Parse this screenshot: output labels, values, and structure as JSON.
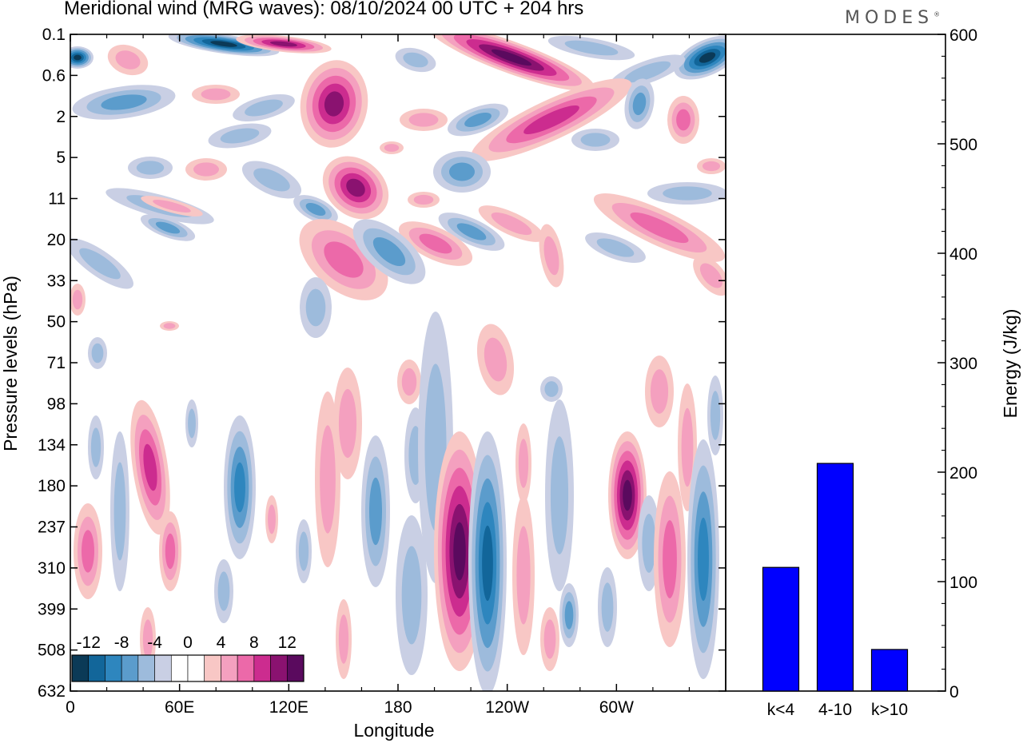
{
  "header": {
    "title": "Meridional wind (MRG waves):  08/10/2024  00 UTC  + 204 hrs",
    "brand": "MODES",
    "brand_mark": "®"
  },
  "chart_data": [
    {
      "type": "heatmap",
      "title": "Meridional wind (MRG waves):  08/10/2024  00 UTC  + 204 hrs",
      "xlabel": "Longitude",
      "ylabel": "Pressure levels (hPa)",
      "x_ticks": [
        "0",
        "60E",
        "120E",
        "180",
        "120W",
        "60W"
      ],
      "y_ticks": [
        "0.1",
        "0.6",
        "2",
        "5",
        "11",
        "20",
        "33",
        "50",
        "71",
        "98",
        "134",
        "180",
        "237",
        "310",
        "399",
        "508",
        "632"
      ],
      "xlim": [
        0,
        360
      ],
      "colorbar": {
        "labels": [
          "-12",
          "-8",
          "-4",
          "0",
          "4",
          "8",
          "12"
        ],
        "colors": [
          "#0b3a57",
          "#12669a",
          "#2e86be",
          "#5b9ccc",
          "#9dbbdc",
          "#c9cfe4",
          "#ffffff",
          "#ffffff",
          "#f8c7c5",
          "#f4a0bf",
          "#ec69a9",
          "#cc2c8f",
          "#8a1270",
          "#5a0a5e"
        ]
      },
      "features": [
        {
          "lon": 85,
          "level": "0.1",
          "value": -14
        },
        {
          "lon": 115,
          "level": "0.1",
          "value": 10
        },
        {
          "lon": 245,
          "level": "0.3",
          "value": 13
        },
        {
          "lon": 352,
          "level": "0.3",
          "value": -15
        },
        {
          "lon": 15,
          "level": "0.3",
          "value": -12
        },
        {
          "lon": 145,
          "level": "1.5",
          "value": 7
        },
        {
          "lon": 155,
          "level": "11",
          "value": 10
        },
        {
          "lon": 150,
          "level": "22",
          "value": 7
        },
        {
          "lon": 175,
          "level": "22",
          "value": -7
        },
        {
          "lon": 205,
          "level": "310",
          "value": 14
        },
        {
          "lon": 225,
          "level": "300",
          "value": -11
        },
        {
          "lon": 306,
          "level": "180",
          "value": 11
        },
        {
          "lon": 353,
          "level": "280",
          "value": -8
        }
      ]
    },
    {
      "type": "bar",
      "categories": [
        "k<4",
        "4-10",
        "k>10"
      ],
      "values": [
        113,
        208,
        38
      ],
      "ylabel": "Energy (J/kg)",
      "ylim": [
        0,
        600
      ],
      "y_ticks": [
        "0",
        "100",
        "200",
        "300",
        "400",
        "500",
        "600"
      ],
      "color": "#0000ff"
    }
  ]
}
